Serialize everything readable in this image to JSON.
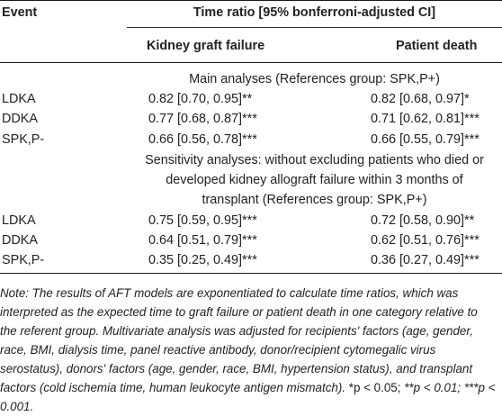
{
  "table": {
    "header": {
      "event": "Event",
      "time_ratio": "Time ratio [95% bonferroni-adjusted CI]",
      "kidney_graft_failure": "Kidney graft failure",
      "patient_death": "Patient death"
    },
    "main_caption": "Main analyses (References group: SPK,P+)",
    "main_rows": [
      {
        "event": "LDKA",
        "graft": "0.82 [0.70, 0.95]**",
        "death": "0.82 [0.68, 0.97]*"
      },
      {
        "event": "DDKA",
        "graft": "0.77 [0.68, 0.87]***",
        "death": "0.71 [0.62, 0.81]***"
      },
      {
        "event": "SPK,P-",
        "graft": "0.66 [0.56, 0.78]***",
        "death": "0.66 [0.55, 0.79]***"
      }
    ],
    "sensitivity_caption": [
      "Sensitivity analyses: without excluding patients who died or",
      "developed kidney allograft failure within 3 months of",
      "transplant (References group: SPK,P+)"
    ],
    "sensitivity_rows": [
      {
        "event": "LDKA",
        "graft": "0.75 [0.59, 0.95]***",
        "death": "0.72 [0.58, 0.90]**"
      },
      {
        "event": "DDKA",
        "graft": "0.64 [0.51, 0.79]***",
        "death": "0.62 [0.51, 0.76]***"
      },
      {
        "event": "SPK,P-",
        "graft": "0.35 [0.25, 0.49]***",
        "death": "0.36 [0.27, 0.49]***"
      }
    ]
  },
  "note": {
    "text": "Note: The results of AFT models are exponentiated to calculate time ratios, which was interpreted as the expected time to graft failure or patient death in one category relative to the referent group. Multivariate analysis was adjusted for recipients' factors (age, gender, race, BMI, dialysis time, panel reactive antibody, donor/recipient cytomegalic virus serostatus), donors' factors (age, gender, race, BMI, hypertension status), and transplant factors (cold ischemia time, human leukocyte antigen mismatch).",
    "sig1": "*p < 0.05;",
    "sig2": "**p < 0.01; ***p < 0.001."
  }
}
